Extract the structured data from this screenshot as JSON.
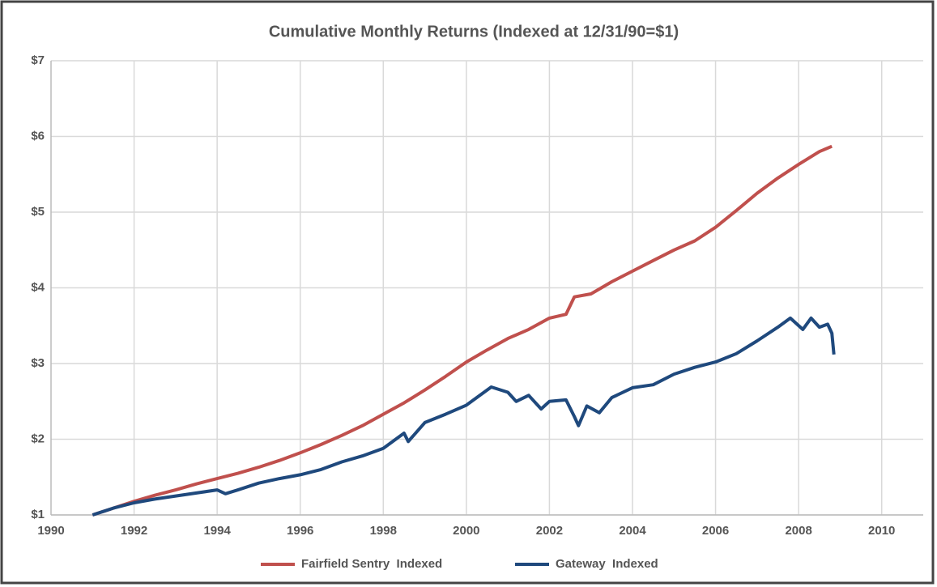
{
  "chart_data": {
    "type": "line",
    "title": "Cumulative Monthly Returns (Indexed at 12/31/90=$1)",
    "xlim": [
      1990,
      2011
    ],
    "xticks": [
      1990,
      1992,
      1994,
      1996,
      1998,
      2000,
      2002,
      2004,
      2006,
      2008,
      2010
    ],
    "ylim": [
      1,
      7
    ],
    "yticks": [
      {
        "value": 1,
        "label": "$1"
      },
      {
        "value": 2,
        "label": "$2"
      },
      {
        "value": 3,
        "label": "$3"
      },
      {
        "value": 4,
        "label": "$4"
      },
      {
        "value": 5,
        "label": "$5"
      },
      {
        "value": 6,
        "label": "$6"
      },
      {
        "value": 7,
        "label": "$7"
      }
    ],
    "grid": true,
    "legend": "bottom",
    "series": [
      {
        "name": "Fairfield Sentry  Indexed",
        "color": "#c0504d",
        "x": [
          1991,
          1991.5,
          1992,
          1992.5,
          1993,
          1993.5,
          1994,
          1994.5,
          1995,
          1995.5,
          1996,
          1996.5,
          1997,
          1997.5,
          1998,
          1998.5,
          1999,
          1999.5,
          2000,
          2000.5,
          2001,
          2001.5,
          2002,
          2002.4,
          2002.6,
          2003,
          2003.5,
          2004,
          2004.5,
          2005,
          2005.5,
          2006,
          2006.5,
          2007,
          2007.5,
          2008,
          2008.5,
          2008.8
        ],
        "values": [
          1.0,
          1.09,
          1.18,
          1.26,
          1.33,
          1.41,
          1.48,
          1.55,
          1.63,
          1.72,
          1.82,
          1.93,
          2.05,
          2.18,
          2.33,
          2.48,
          2.65,
          2.83,
          3.02,
          3.18,
          3.33,
          3.45,
          3.6,
          3.65,
          3.88,
          3.92,
          4.08,
          4.22,
          4.36,
          4.5,
          4.62,
          4.8,
          5.02,
          5.25,
          5.45,
          5.63,
          5.8,
          5.87
        ]
      },
      {
        "name": "Gateway  Indexed",
        "color": "#1f497d",
        "x": [
          1991,
          1991.5,
          1992,
          1992.5,
          1993,
          1993.5,
          1994,
          1994.2,
          1994.5,
          1995,
          1995.5,
          1996,
          1996.5,
          1997,
          1997.5,
          1998,
          1998.5,
          1998.6,
          1999,
          1999.5,
          2000,
          2000.6,
          2001,
          2001.2,
          2001.5,
          2001.8,
          2002,
          2002.4,
          2002.6,
          2002.7,
          2002.9,
          2003.2,
          2003.5,
          2004,
          2004.5,
          2005,
          2005.5,
          2006,
          2006.5,
          2007,
          2007.5,
          2007.8,
          2008.1,
          2008.3,
          2008.5,
          2008.7,
          2008.8,
          2008.85
        ],
        "values": [
          1.0,
          1.09,
          1.16,
          1.21,
          1.25,
          1.29,
          1.33,
          1.28,
          1.33,
          1.42,
          1.48,
          1.53,
          1.6,
          1.7,
          1.78,
          1.88,
          2.08,
          1.97,
          2.22,
          2.33,
          2.45,
          2.69,
          2.62,
          2.5,
          2.58,
          2.4,
          2.5,
          2.52,
          2.3,
          2.18,
          2.44,
          2.35,
          2.55,
          2.68,
          2.72,
          2.86,
          2.95,
          3.02,
          3.13,
          3.3,
          3.48,
          3.6,
          3.45,
          3.6,
          3.48,
          3.52,
          3.4,
          3.12
        ]
      }
    ]
  }
}
